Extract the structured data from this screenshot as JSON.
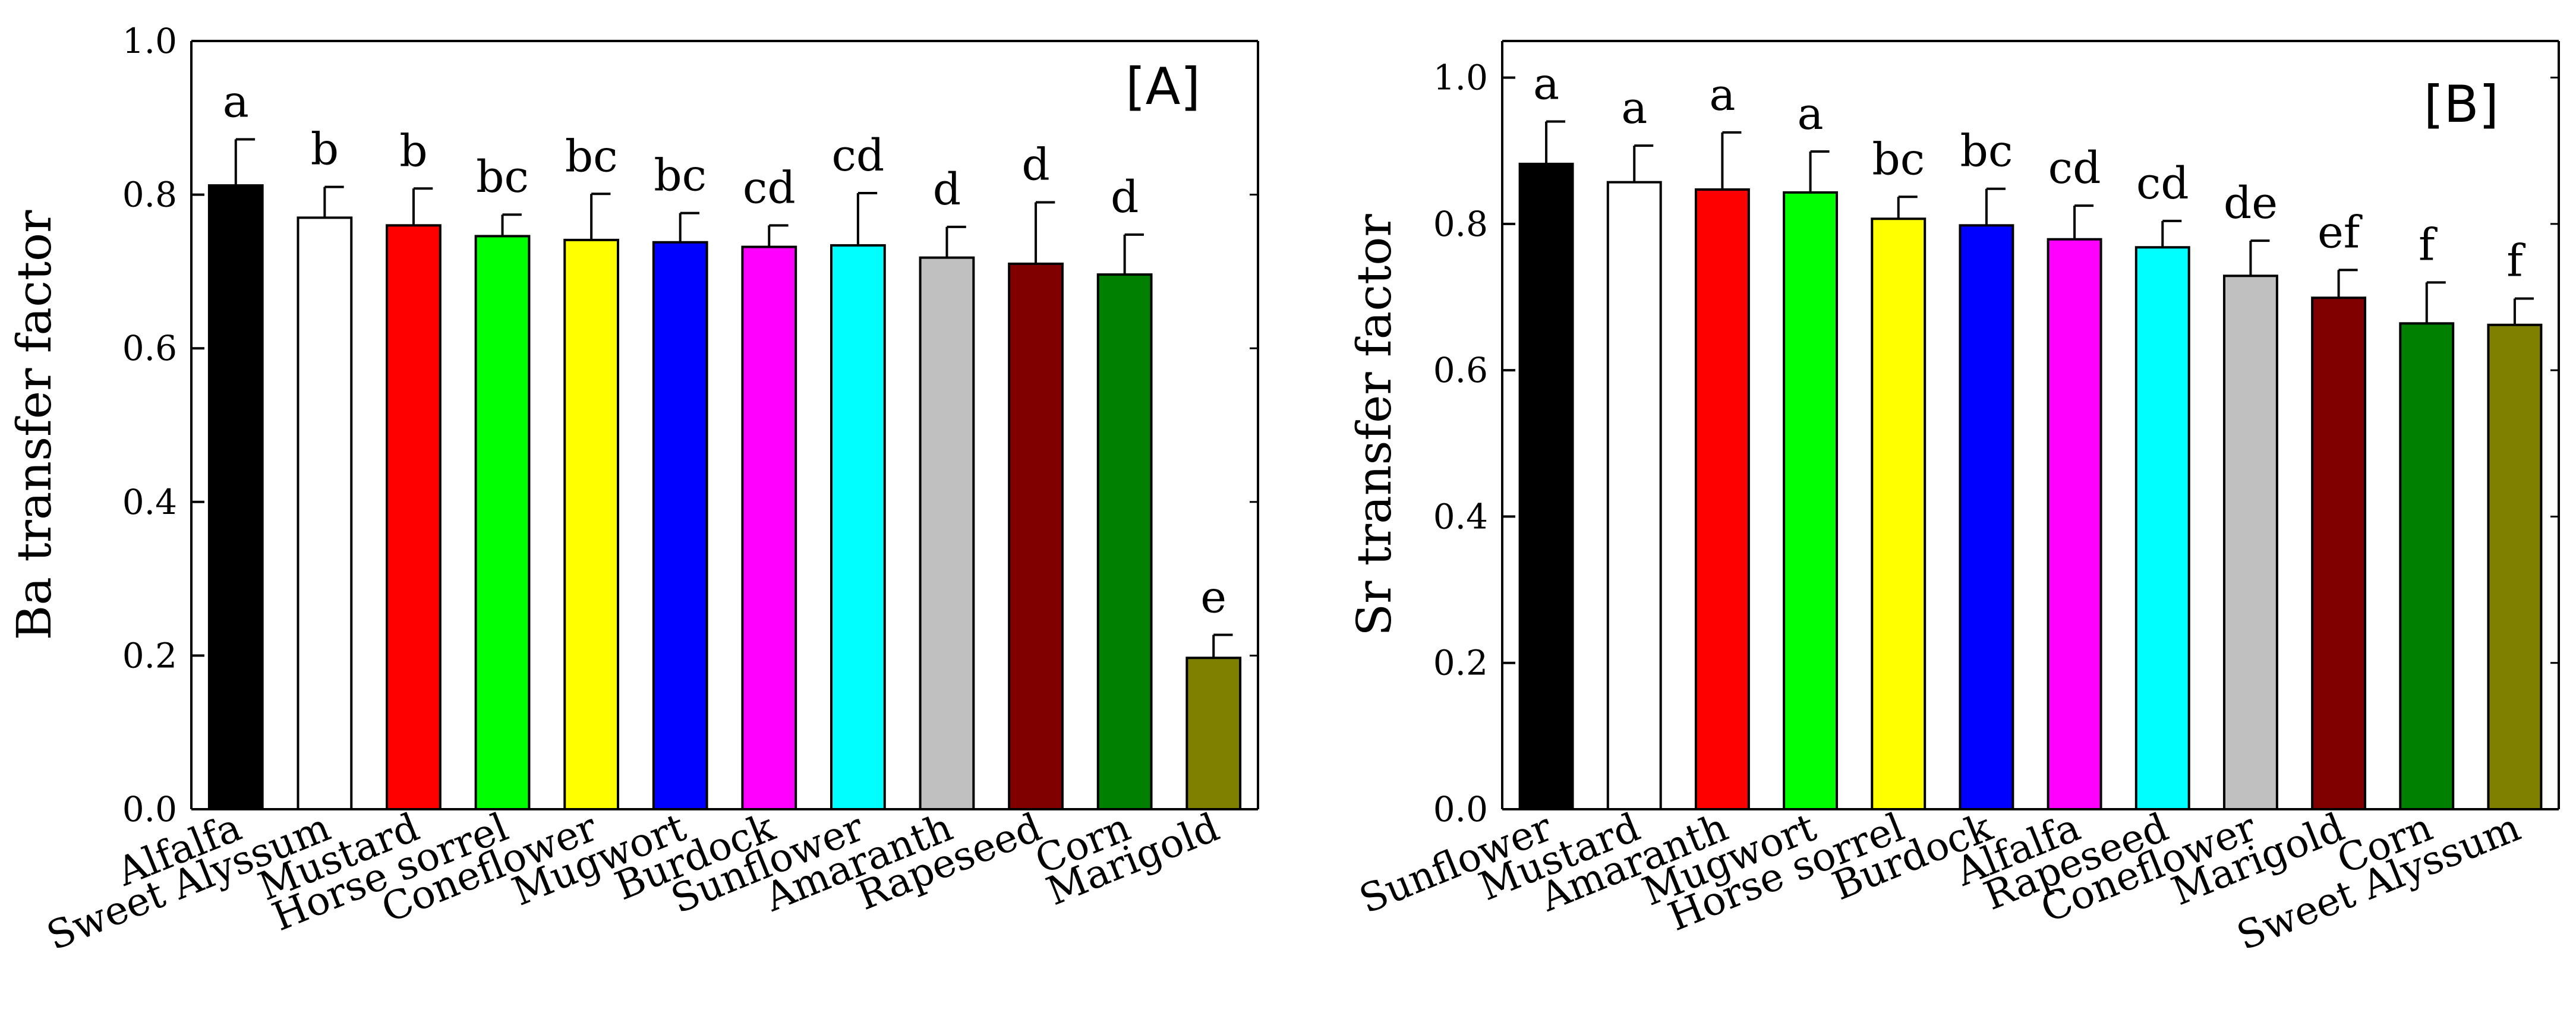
{
  "chart_data": [
    {
      "type": "bar",
      "panel": "[A]",
      "ylabel": "Ba transfer factor",
      "xlabel": "",
      "ylim": [
        0,
        1.0
      ],
      "yticks": [
        "0.0",
        "0.2",
        "0.4",
        "0.6",
        "0.8",
        "1.0"
      ],
      "categories": [
        "Alfalfa",
        "Sweet Alyssum",
        "Mustard",
        "Horse sorrel",
        "Coneflower",
        "Mugwort",
        "Burdock",
        "Sunflower",
        "Amaranth",
        "Rapeseed",
        "Corn",
        "Marigold"
      ],
      "values": [
        0.812,
        0.77,
        0.76,
        0.746,
        0.741,
        0.738,
        0.732,
        0.734,
        0.718,
        0.71,
        0.696,
        0.197
      ],
      "errors": [
        0.06,
        0.04,
        0.048,
        0.028,
        0.06,
        0.038,
        0.028,
        0.068,
        0.04,
        0.08,
        0.052,
        0.03
      ],
      "letters": [
        "a",
        "b",
        "b",
        "bc",
        "bc",
        "bc",
        "cd",
        "cd",
        "d",
        "d",
        "d",
        "e"
      ],
      "colors": [
        "#000000",
        "#ffffff",
        "#ff0000",
        "#00ff00",
        "#ffff00",
        "#0000ff",
        "#ff00ff",
        "#00ffff",
        "#c0c0c0",
        "#800000",
        "#008000",
        "#808000"
      ]
    },
    {
      "type": "bar",
      "panel": "[B]",
      "ylabel": "Sr transfer factor",
      "xlabel": "",
      "ylim": [
        0,
        1.05
      ],
      "yticks": [
        "0.0",
        "0.2",
        "0.4",
        "0.6",
        "0.8",
        "1.0"
      ],
      "categories": [
        "Sunflower",
        "Mustard",
        "Amaranth",
        "Mugwort",
        "Horse sorrel",
        "Burdock",
        "Alfalfa",
        "Rapeseed",
        "Coneflower",
        "Marigold",
        "Corn",
        "Sweet Alyssum"
      ],
      "values": [
        0.882,
        0.857,
        0.847,
        0.843,
        0.807,
        0.798,
        0.779,
        0.768,
        0.729,
        0.699,
        0.664,
        0.662
      ],
      "errors": [
        0.058,
        0.05,
        0.078,
        0.056,
        0.03,
        0.05,
        0.046,
        0.036,
        0.048,
        0.038,
        0.056,
        0.036
      ],
      "letters": [
        "a",
        "a",
        "a",
        "a",
        "bc",
        "bc",
        "cd",
        "cd",
        "de",
        "ef",
        "f",
        "f"
      ],
      "colors": [
        "#000000",
        "#ffffff",
        "#ff0000",
        "#00ff00",
        "#ffff00",
        "#0000ff",
        "#ff00ff",
        "#00ffff",
        "#c0c0c0",
        "#800000",
        "#008000",
        "#808000"
      ]
    }
  ]
}
